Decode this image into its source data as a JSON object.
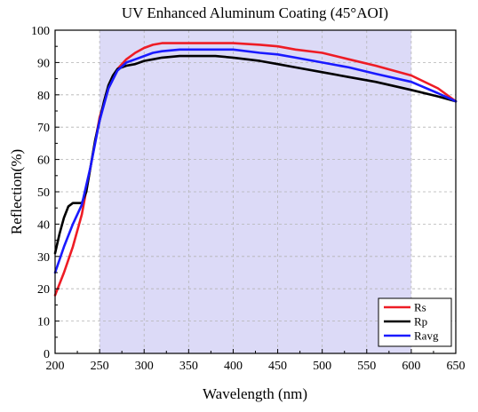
{
  "chart_data": {
    "type": "line",
    "title": "UV Enhanced Aluminum Coating (45°AOI)",
    "xlabel": "Wavelength (nm)",
    "ylabel": "Reflection(%)",
    "xlim": [
      200,
      650
    ],
    "ylim": [
      0,
      100
    ],
    "x_ticks": [
      200,
      250,
      300,
      350,
      400,
      450,
      500,
      550,
      600,
      650
    ],
    "y_ticks": [
      0,
      10,
      20,
      30,
      40,
      50,
      60,
      70,
      80,
      90,
      100
    ],
    "grid": "dashed",
    "highlight_band": {
      "x_start": 250,
      "x_end": 600,
      "color": "#dcdaf7"
    },
    "legend_position": "bottom-right",
    "series": [
      {
        "name": "Rs",
        "color": "#ee1c25",
        "points": [
          [
            200,
            18
          ],
          [
            210,
            25
          ],
          [
            220,
            33
          ],
          [
            230,
            43
          ],
          [
            240,
            58
          ],
          [
            250,
            73
          ],
          [
            260,
            82
          ],
          [
            270,
            88
          ],
          [
            280,
            91
          ],
          [
            290,
            93
          ],
          [
            300,
            94.5
          ],
          [
            310,
            95.5
          ],
          [
            320,
            96
          ],
          [
            330,
            96
          ],
          [
            350,
            96
          ],
          [
            370,
            96
          ],
          [
            400,
            96
          ],
          [
            430,
            95.5
          ],
          [
            450,
            95
          ],
          [
            470,
            94
          ],
          [
            500,
            93
          ],
          [
            530,
            91
          ],
          [
            560,
            89
          ],
          [
            600,
            86
          ],
          [
            630,
            82
          ],
          [
            650,
            78
          ]
        ]
      },
      {
        "name": "Rp",
        "color": "#000000",
        "points": [
          [
            200,
            31
          ],
          [
            205,
            37
          ],
          [
            210,
            42
          ],
          [
            215,
            45.5
          ],
          [
            220,
            46.5
          ],
          [
            225,
            46.5
          ],
          [
            230,
            46.5
          ],
          [
            235,
            50
          ],
          [
            240,
            58
          ],
          [
            245,
            66
          ],
          [
            250,
            72
          ],
          [
            255,
            78
          ],
          [
            260,
            83
          ],
          [
            265,
            86
          ],
          [
            270,
            88
          ],
          [
            280,
            89
          ],
          [
            290,
            89.5
          ],
          [
            300,
            90.5
          ],
          [
            310,
            91
          ],
          [
            320,
            91.5
          ],
          [
            340,
            92
          ],
          [
            360,
            92
          ],
          [
            380,
            92
          ],
          [
            400,
            91.5
          ],
          [
            430,
            90.5
          ],
          [
            450,
            89.5
          ],
          [
            470,
            88.5
          ],
          [
            500,
            87
          ],
          [
            530,
            85.5
          ],
          [
            560,
            84
          ],
          [
            600,
            81.5
          ],
          [
            630,
            79.5
          ],
          [
            650,
            78
          ]
        ]
      },
      {
        "name": "Ravg",
        "color": "#1a1aff",
        "points": [
          [
            200,
            25
          ],
          [
            210,
            33
          ],
          [
            220,
            40
          ],
          [
            230,
            46
          ],
          [
            240,
            58
          ],
          [
            250,
            72
          ],
          [
            260,
            82
          ],
          [
            270,
            87.5
          ],
          [
            280,
            90
          ],
          [
            290,
            91
          ],
          [
            300,
            92
          ],
          [
            310,
            93
          ],
          [
            320,
            93.5
          ],
          [
            340,
            94
          ],
          [
            370,
            94
          ],
          [
            400,
            94
          ],
          [
            430,
            93
          ],
          [
            450,
            92.5
          ],
          [
            470,
            91.5
          ],
          [
            500,
            90
          ],
          [
            530,
            88.5
          ],
          [
            560,
            86.5
          ],
          [
            600,
            84
          ],
          [
            630,
            80.5
          ],
          [
            650,
            78
          ]
        ]
      }
    ]
  }
}
